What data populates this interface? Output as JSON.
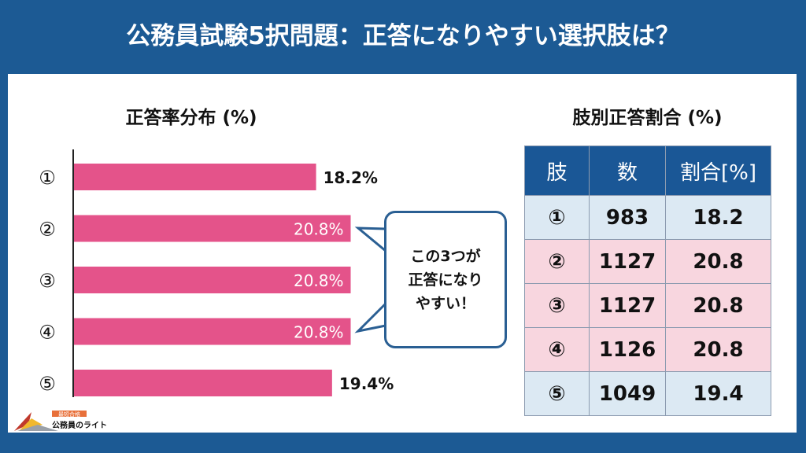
{
  "title": "公務員試験5択問題：正答になりやすい選択肢は？",
  "chart_data": {
    "type": "bar",
    "orientation": "horizontal",
    "title": "正答率分布 (%)",
    "categories": [
      "①",
      "②",
      "③",
      "④",
      "⑤"
    ],
    "values": [
      18.2,
      20.8,
      20.8,
      20.8,
      19.4
    ],
    "data_labels": [
      "18.2%",
      "20.8%",
      "20.8%",
      "20.8%",
      "19.4%"
    ],
    "highlight": [
      false,
      true,
      true,
      true,
      false
    ],
    "bar_color": "#e4538a",
    "grid": false
  },
  "callout": {
    "lines": [
      "この3つが",
      "正答になり",
      "やすい！"
    ]
  },
  "table": {
    "title": "肢別正答割合 (%)",
    "headers": [
      "肢",
      "数",
      "割合[%]"
    ],
    "rows": [
      [
        "①",
        "983",
        "18.2"
      ],
      [
        "②",
        "1127",
        "20.8"
      ],
      [
        "③",
        "1127",
        "20.8"
      ],
      [
        "④",
        "1126",
        "20.8"
      ],
      [
        "⑤",
        "1049",
        "19.4"
      ]
    ]
  },
  "logo": {
    "tag": "最短合格",
    "name": "公務員のライト"
  },
  "colors": {
    "background": "#1c5a94",
    "bar": "#e4538a",
    "header": "#1a5796",
    "row_blue": "#dce9f3",
    "row_pink": "#f8d6df",
    "accent_text": "#e04a7f"
  }
}
